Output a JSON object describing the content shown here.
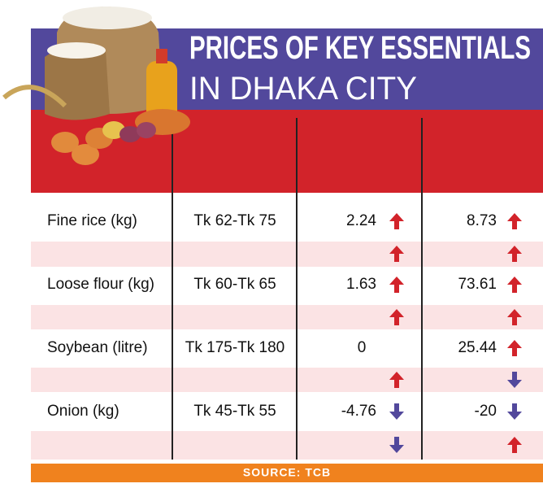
{
  "header": {
    "title_line1": "PRICES OF KEY ESSENTIALS",
    "title_line2": "IN DHAKA CITY"
  },
  "table": {
    "rows": [
      [
        "Fine rice (kg)",
        "Tk 62-Tk 75",
        2.24,
        8.73
      ],
      [
        "Loose flour (kg)",
        "Tk 60-Tk 65",
        1.63,
        73.61
      ],
      [
        "Soybean (litre)",
        "Tk 175-Tk 180",
        0,
        25.44
      ],
      [
        "Onion (kg)",
        "Tk 45-Tk 55",
        -4.76,
        -20
      ]
    ]
  },
  "footer": {
    "source": "SOURCE: TCB"
  }
}
